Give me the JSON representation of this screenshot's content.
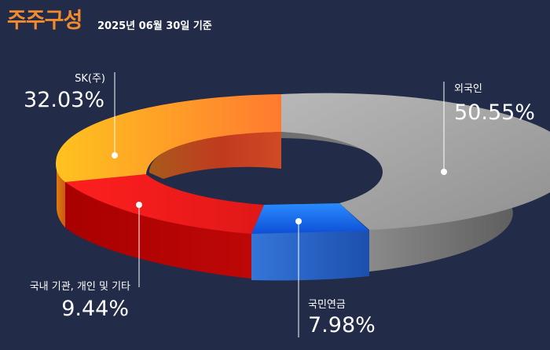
{
  "header": {
    "title": "주주구성",
    "subtitle": "2025년 06월 30일 기준"
  },
  "chart_data": {
    "type": "pie",
    "donut": true,
    "style": "3d",
    "series": [
      {
        "name": "외국인",
        "value": 50.55,
        "label": "50.55%",
        "color": "#9a9a9a"
      },
      {
        "name": "국민연금",
        "value": 7.98,
        "label": "7.98%",
        "color": "#1f6fe8"
      },
      {
        "name": "국내 기관, 개인 및 기타",
        "value": 9.44,
        "label": "9.44%",
        "color": "#e81e1e"
      },
      {
        "name": "SK(주)",
        "value": 32.03,
        "label": "32.03%",
        "color": "#ffa020"
      }
    ]
  }
}
